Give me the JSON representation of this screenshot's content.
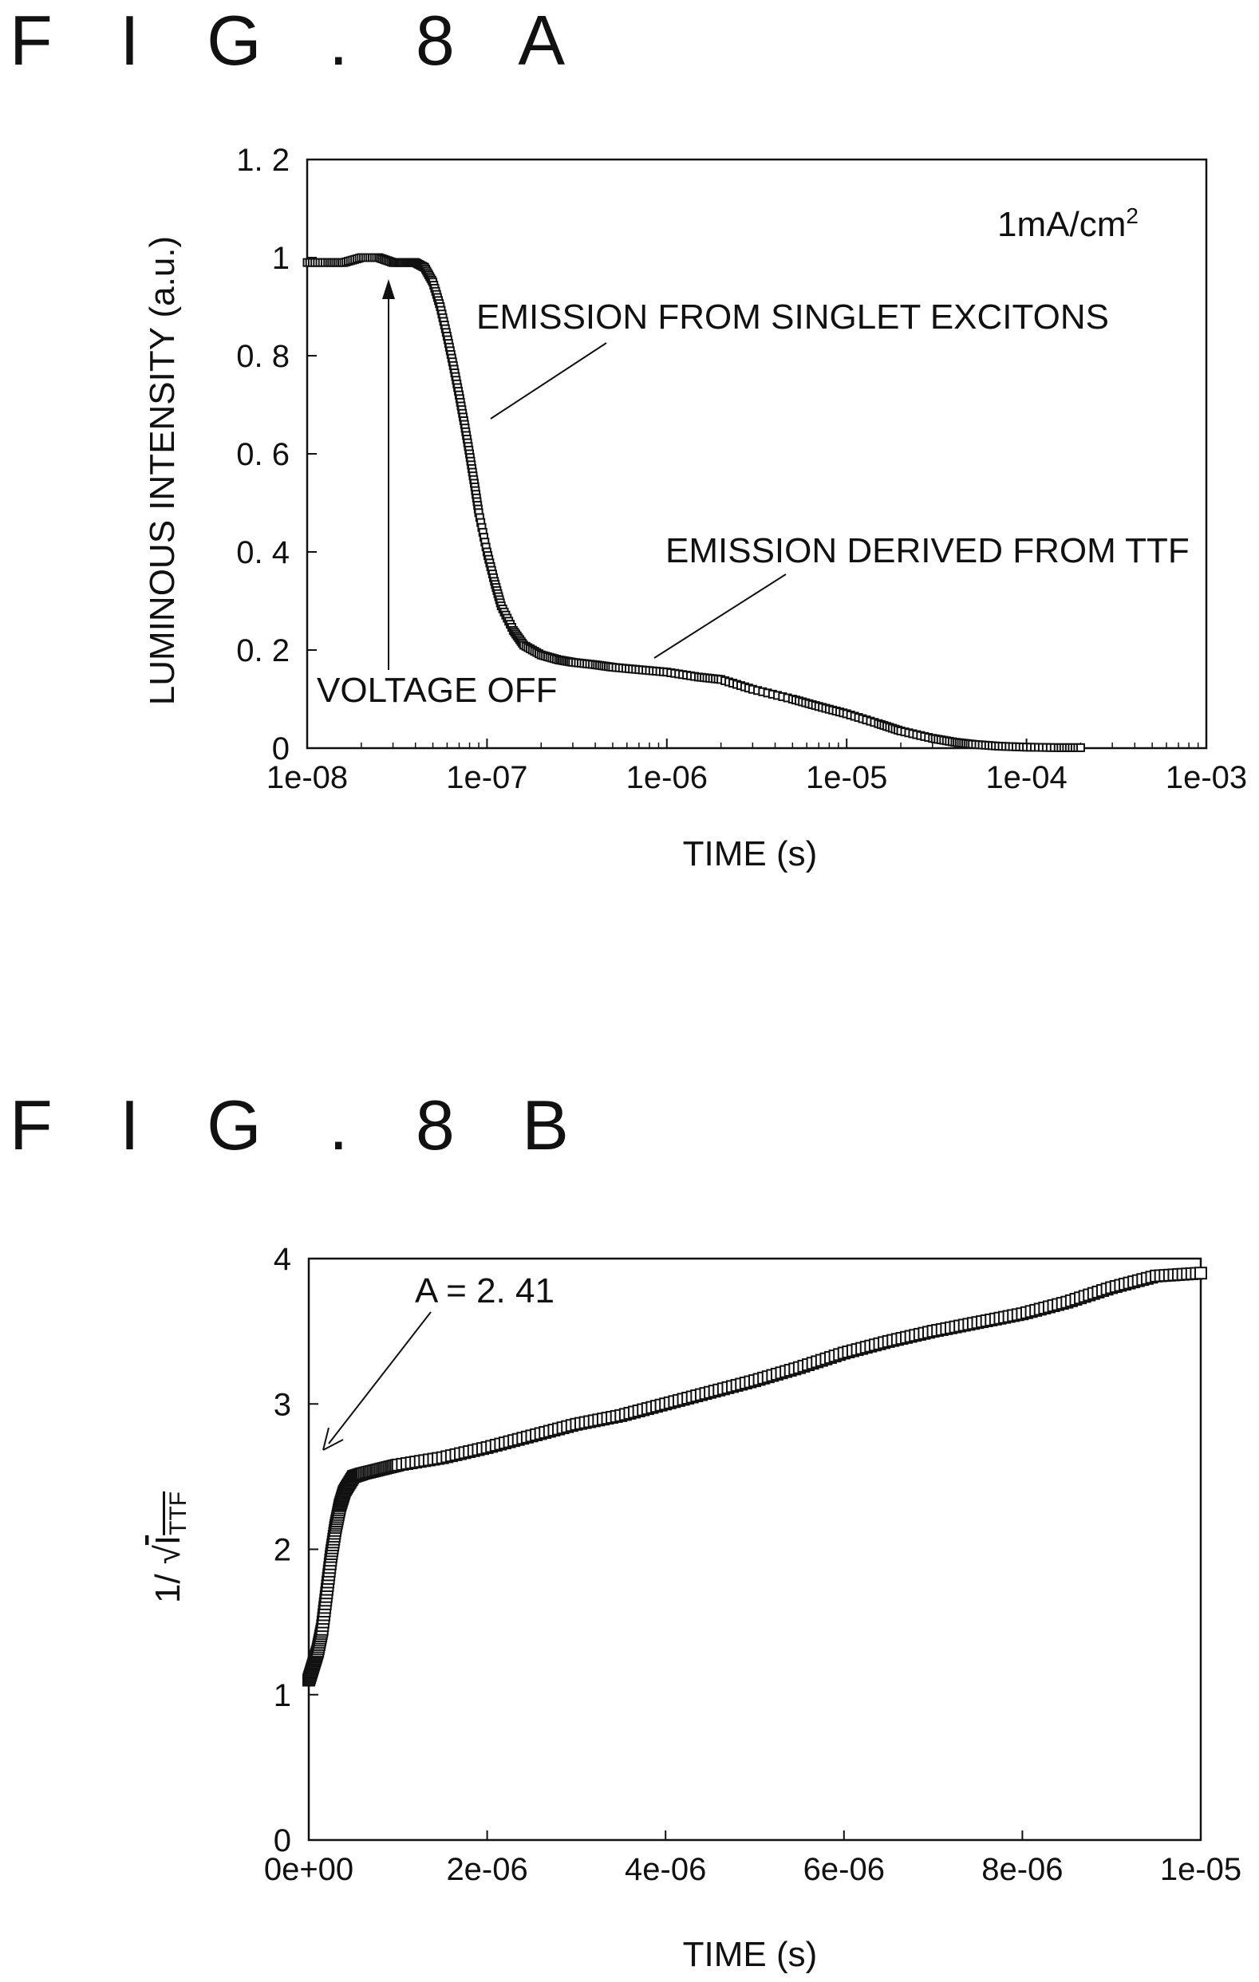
{
  "figA": {
    "label": "F I G . 8 A",
    "chart_data": {
      "type": "scatter",
      "xscale": "log",
      "xlim": [
        1e-08,
        0.001
      ],
      "ylim": [
        0,
        1.2
      ],
      "xticks": [
        {
          "value": 1e-08,
          "label": "1e-08"
        },
        {
          "value": 1e-07,
          "label": "1e-07"
        },
        {
          "value": 1e-06,
          "label": "1e-06"
        },
        {
          "value": 1e-05,
          "label": "1e-05"
        },
        {
          "value": 0.0001,
          "label": "1e-04"
        },
        {
          "value": 0.001,
          "label": "1e-03"
        }
      ],
      "yticks": [
        {
          "value": 0,
          "label": "0"
        },
        {
          "value": 0.2,
          "label": "0. 2"
        },
        {
          "value": 0.4,
          "label": "0. 4"
        },
        {
          "value": 0.6,
          "label": "0. 6"
        },
        {
          "value": 0.8,
          "label": "0. 8"
        },
        {
          "value": 1.0,
          "label": "1"
        },
        {
          "value": 1.2,
          "label": "1. 2"
        }
      ],
      "xlabel": "TIME (s)",
      "ylabel": "LUMINOUS INTENSITY (a.u.)",
      "grid": false,
      "marker": "open-square",
      "series": [
        {
          "x": [
            1e-08,
            1.3e-08,
            1.6e-08,
            2e-08,
            2.5e-08,
            3e-08,
            3.5e-08,
            4e-08,
            4.5e-08,
            5e-08,
            5.5e-08,
            6e-08,
            6.5e-08,
            7e-08,
            7.5e-08,
            8e-08,
            8.5e-08,
            9e-08,
            1e-07,
            1.1e-07,
            1.2e-07,
            1.4e-07,
            1.6e-07,
            2e-07,
            2.5e-07,
            3e-07,
            4e-07,
            5e-07,
            7e-07,
            1e-06,
            1.5e-06,
            2e-06,
            3e-06,
            5e-06,
            7e-06,
            1e-05,
            1.5e-05,
            2e-05,
            3e-05,
            4e-05,
            5e-05,
            7e-05,
            0.0001,
            0.00015,
            0.0002
          ],
          "y": [
            0.99,
            0.99,
            0.99,
            1.0,
            1.0,
            0.99,
            0.99,
            0.99,
            0.98,
            0.95,
            0.9,
            0.84,
            0.78,
            0.72,
            0.66,
            0.6,
            0.54,
            0.48,
            0.4,
            0.34,
            0.29,
            0.24,
            0.21,
            0.19,
            0.18,
            0.175,
            0.17,
            0.165,
            0.16,
            0.155,
            0.145,
            0.14,
            0.12,
            0.1,
            0.085,
            0.07,
            0.05,
            0.035,
            0.02,
            0.012,
            0.008,
            0.004,
            0.002,
            0.001,
            0.001
          ]
        }
      ],
      "annotations": [
        {
          "text": "1mA/cm",
          "sup": "2"
        },
        {
          "text": "EMISSION FROM SINGLET EXCITONS"
        },
        {
          "text": "EMISSION DERIVED FROM TTF"
        },
        {
          "text": "VOLTAGE OFF"
        }
      ]
    }
  },
  "figB": {
    "label": "F I G . 8 B",
    "chart_data": {
      "type": "scatter",
      "xlim": [
        0,
        1e-05
      ],
      "ylim": [
        0,
        4
      ],
      "xticks": [
        {
          "value": 0,
          "label": "0e+00"
        },
        {
          "value": 2e-06,
          "label": "2e-06"
        },
        {
          "value": 4e-06,
          "label": "4e-06"
        },
        {
          "value": 6e-06,
          "label": "6e-06"
        },
        {
          "value": 8e-06,
          "label": "8e-06"
        },
        {
          "value": 1e-05,
          "label": "1e-05"
        }
      ],
      "yticks": [
        {
          "value": 0,
          "label": "0"
        },
        {
          "value": 1,
          "label": "1"
        },
        {
          "value": 2,
          "label": "2"
        },
        {
          "value": 3,
          "label": "3"
        },
        {
          "value": 4,
          "label": "4"
        }
      ],
      "xlabel": "TIME (s)",
      "ylabel": {
        "prefix": "1/ √",
        "main": "I",
        "sub": "TTF"
      },
      "grid": false,
      "marker": "open-square",
      "series": [
        {
          "x": [
            0,
            5e-08,
            1e-07,
            1.5e-07,
            2e-07,
            2.5e-07,
            3e-07,
            3.5e-07,
            4e-07,
            5e-07,
            6e-07,
            8e-07,
            1e-06,
            1.5e-06,
            2e-06,
            2.5e-06,
            3e-06,
            3.5e-06,
            4e-06,
            4.5e-06,
            5e-06,
            5.5e-06,
            6e-06,
            6.5e-06,
            7e-06,
            7.5e-06,
            8e-06,
            8.5e-06,
            9e-06,
            9.5e-06,
            1e-05
          ],
          "y": [
            1.1,
            1.2,
            1.3,
            1.45,
            1.7,
            1.95,
            2.15,
            2.3,
            2.4,
            2.5,
            2.52,
            2.55,
            2.58,
            2.63,
            2.7,
            2.78,
            2.86,
            2.92,
            3.0,
            3.08,
            3.16,
            3.25,
            3.35,
            3.43,
            3.5,
            3.56,
            3.62,
            3.7,
            3.8,
            3.88,
            3.9
          ]
        }
      ],
      "annotations": [
        {
          "text": "A = 2. 41"
        }
      ]
    }
  }
}
